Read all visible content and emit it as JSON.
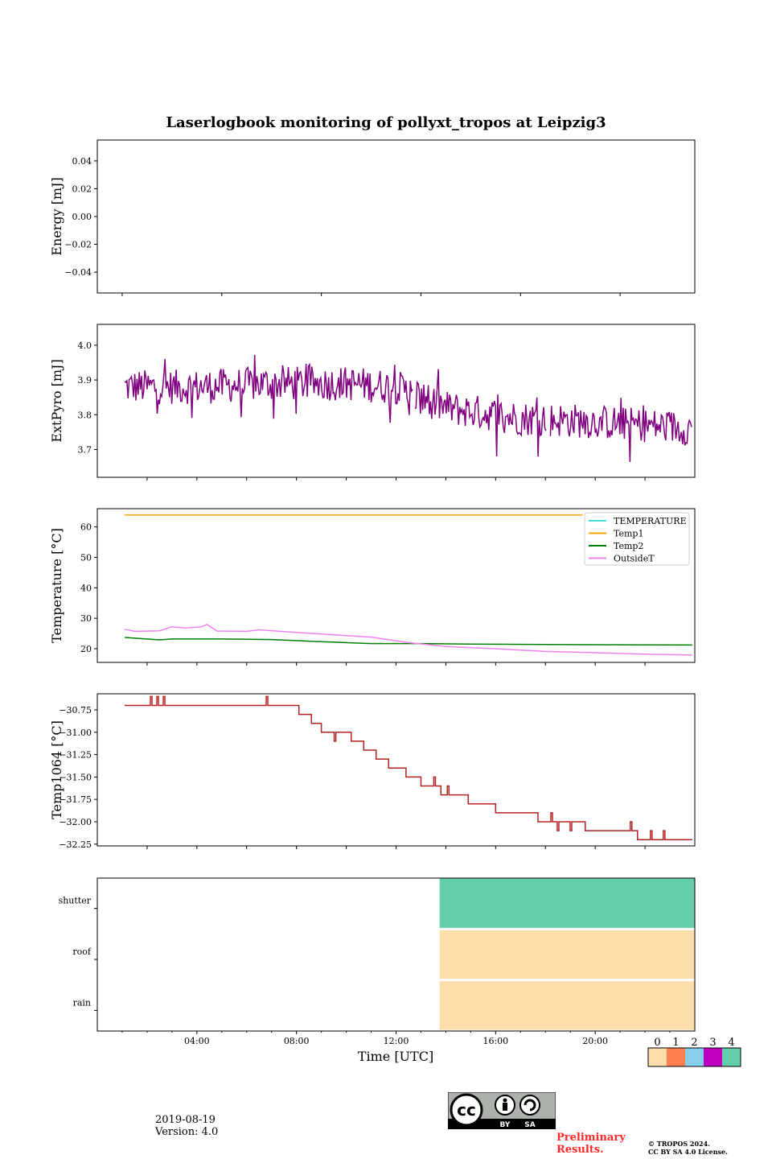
{
  "chart_data": [
    {
      "type": "line",
      "title": "Laserlogbook monitoring of pollyxt_tropos at Leipzig3",
      "ylabel": "Energy [mJ]",
      "ylim": [
        -0.055,
        0.055
      ],
      "yticks": [
        "0.04",
        "0.02",
        "0.00",
        "−0.02",
        "−0.04"
      ],
      "ytick_values": [
        0.04,
        0.02,
        0.0,
        -0.02,
        -0.04
      ],
      "series": []
    },
    {
      "type": "line",
      "ylabel": "ExtPyro [mJ]",
      "ylim": [
        3.62,
        4.06
      ],
      "yticks": [
        "4.0",
        "3.9",
        "3.8",
        "3.7"
      ],
      "ytick_values": [
        4.0,
        3.9,
        3.8,
        3.7
      ],
      "series": [
        {
          "name": "ExtPyro",
          "color": "#800080",
          "x_range_hours": [
            1.1,
            23.9
          ],
          "trend": [
            [
              1.1,
              3.88
            ],
            [
              4,
              3.88
            ],
            [
              7,
              3.89
            ],
            [
              10,
              3.89
            ],
            [
              12,
              3.88
            ],
            [
              14,
              3.82
            ],
            [
              17,
              3.79
            ],
            [
              20,
              3.78
            ],
            [
              23.9,
              3.76
            ]
          ],
          "noise_amplitude": 0.05,
          "gaps_hours": [
            [
              12.5,
              13.4
            ],
            [
              17.9,
              18.2
            ]
          ]
        }
      ]
    },
    {
      "type": "line",
      "ylabel": "Temperature [°C]",
      "ylim": [
        15.5,
        66
      ],
      "yticks": [
        "60",
        "50",
        "40",
        "30",
        "20"
      ],
      "ytick_values": [
        60,
        50,
        40,
        30,
        20
      ],
      "legend": [
        "TEMPERATURE",
        "Temp1",
        "Temp2",
        "OutsideT"
      ],
      "legend_position": "top-right",
      "series": [
        {
          "name": "TEMPERATURE",
          "color": "#40e0e0",
          "points": []
        },
        {
          "name": "Temp1",
          "color": "#ffa500",
          "points": [
            [
              1.1,
              63.9
            ],
            [
              19.5,
              63.9
            ]
          ]
        },
        {
          "name": "Temp2",
          "color": "#008000",
          "points": [
            [
              1.1,
              23.7
            ],
            [
              2.5,
              22.9
            ],
            [
              3,
              23.2
            ],
            [
              5,
              23.2
            ],
            [
              7,
              23.0
            ],
            [
              9,
              22.3
            ],
            [
              11,
              21.7
            ],
            [
              13,
              21.7
            ],
            [
              15,
              21.5
            ],
            [
              18,
              21.4
            ],
            [
              21,
              21.3
            ],
            [
              23.9,
              21.2
            ]
          ]
        },
        {
          "name": "OutsideT",
          "color": "#ee82ee",
          "points": [
            [
              1.1,
              26.4
            ],
            [
              1.5,
              25.7
            ],
            [
              2.5,
              25.9
            ],
            [
              3,
              27.2
            ],
            [
              3.5,
              26.8
            ],
            [
              4.2,
              27.2
            ],
            [
              4.4,
              28.0
            ],
            [
              4.8,
              25.8
            ],
            [
              6,
              25.7
            ],
            [
              6.5,
              26.2
            ],
            [
              7.5,
              25.6
            ],
            [
              9,
              24.8
            ],
            [
              11,
              23.8
            ],
            [
              12.5,
              22.0
            ],
            [
              14,
              20.7
            ],
            [
              16,
              20.0
            ],
            [
              18,
              19.1
            ],
            [
              20,
              18.7
            ],
            [
              22,
              18.2
            ],
            [
              23.9,
              17.9
            ]
          ]
        }
      ]
    },
    {
      "type": "line",
      "ylabel": "Temp1064 [°C]",
      "ylim": [
        -32.27,
        -30.57
      ],
      "yticks": [
        "−30.75",
        "−31.00",
        "−31.25",
        "−31.50",
        "−31.75",
        "−32.00",
        "−32.25"
      ],
      "ytick_values": [
        -30.75,
        -31.0,
        -31.25,
        -31.5,
        -31.75,
        -32.0,
        -32.25
      ],
      "series": [
        {
          "name": "Temp1064",
          "color": "#b22222",
          "steps": [
            [
              1.1,
              -30.7
            ],
            [
              8.1,
              -30.8
            ],
            [
              8.6,
              -30.9
            ],
            [
              9.0,
              -31.0
            ],
            [
              10.2,
              -31.1
            ],
            [
              10.7,
              -31.2
            ],
            [
              11.2,
              -31.3
            ],
            [
              11.7,
              -31.4
            ],
            [
              12.4,
              -31.5
            ],
            [
              13.0,
              -31.6
            ],
            [
              13.8,
              -31.7
            ],
            [
              14.9,
              -31.8
            ],
            [
              16.0,
              -31.9
            ],
            [
              17.7,
              -32.0
            ],
            [
              19.6,
              -32.1
            ],
            [
              21.7,
              -32.2
            ],
            [
              23.9,
              -32.2
            ]
          ]
        }
      ]
    },
    {
      "type": "heatmap",
      "rows": [
        "shutter",
        "roof",
        "rain"
      ],
      "xlabel": "Time [UTC]",
      "xticks": [
        "04:00",
        "08:00",
        "12:00",
        "16:00",
        "20:00"
      ],
      "xtick_hours": [
        4,
        8,
        12,
        16,
        20
      ],
      "xlim_hours": [
        0,
        24
      ],
      "status_from_hour": 13.75,
      "status_until_hour": 24,
      "row_values": {
        "shutter": 4,
        "roof": 0,
        "rain": 0
      },
      "colorbar": {
        "ticks": [
          "0",
          "1",
          "2",
          "3",
          "4"
        ],
        "colors": [
          "#fcdeaa",
          "#ff7f50",
          "#87ceeb",
          "#c000c0",
          "#66cdaa"
        ]
      }
    }
  ],
  "footer": {
    "date": "2019-08-19",
    "version": "Version: 4.0",
    "preliminary_line1": "Preliminary",
    "preliminary_line2": "Results.",
    "copyright_line1": "© TROPOS 2024.",
    "copyright_line2": "CC BY SA 4.0 License.",
    "license_badge": [
      "BY",
      "SA"
    ],
    "license_logo_text": "cc"
  }
}
